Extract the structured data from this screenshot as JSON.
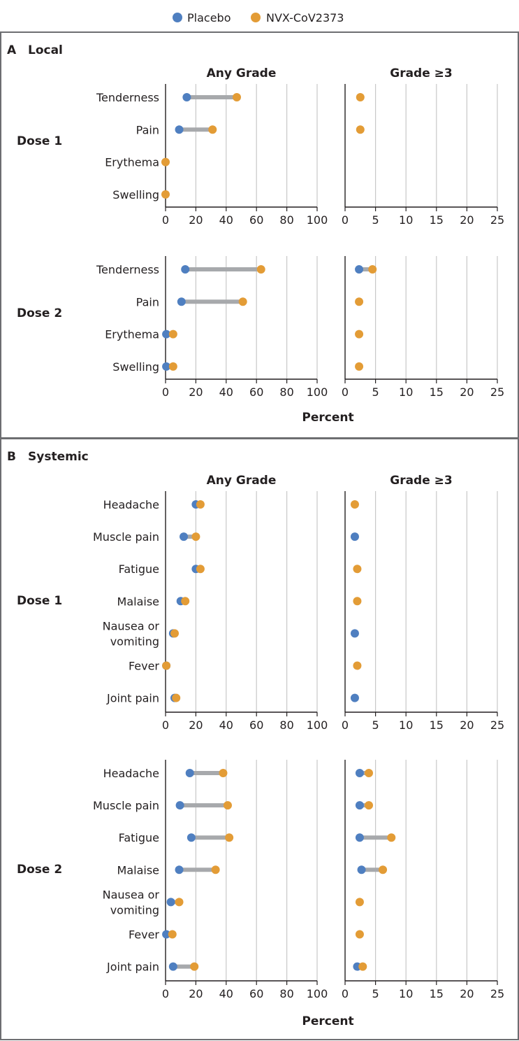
{
  "legend": {
    "placebo_label": "Placebo",
    "vaccine_label": "NVX-CoV2373"
  },
  "colors": {
    "placebo": "#4f7fc0",
    "vaccine": "#e39c36",
    "connector": "#a7a9ac",
    "gridline": "#c8c8c8",
    "panel_border": "#6d6e71",
    "axis": "#231f20"
  },
  "panels": [
    {
      "letter": "A",
      "title": "Local"
    },
    {
      "letter": "B",
      "title": "Systemic"
    }
  ],
  "column_titles": {
    "any_grade": "Any Grade",
    "grade3": "Grade ≥3"
  },
  "axis_label": "Percent",
  "chart_data": [
    {
      "type": "dumbbell",
      "panel": "A",
      "group": "Dose 1",
      "categories": [
        "Tenderness",
        "Pain",
        "Erythema",
        "Swelling"
      ],
      "any_grade": {
        "xlim": [
          0,
          100
        ],
        "ticks": [
          0,
          20,
          40,
          60,
          80,
          100
        ],
        "placebo": [
          14,
          9,
          null,
          null
        ],
        "vaccine": [
          47,
          31,
          0,
          0
        ]
      },
      "grade3": {
        "xlim": [
          0,
          25
        ],
        "ticks": [
          0,
          5,
          10,
          15,
          20,
          25
        ],
        "placebo": [
          null,
          null,
          null,
          null
        ],
        "vaccine": [
          2.5,
          2.5,
          null,
          null
        ]
      }
    },
    {
      "type": "dumbbell",
      "panel": "A",
      "group": "Dose 2",
      "categories": [
        "Tenderness",
        "Pain",
        "Erythema",
        "Swelling"
      ],
      "any_grade": {
        "xlim": [
          0,
          100
        ],
        "ticks": [
          0,
          20,
          40,
          60,
          80,
          100
        ],
        "placebo": [
          13,
          10.5,
          0.5,
          0.5
        ],
        "vaccine": [
          63,
          51,
          5,
          5
        ]
      },
      "grade3": {
        "xlim": [
          0,
          25
        ],
        "ticks": [
          0,
          5,
          10,
          15,
          20,
          25
        ],
        "placebo": [
          2.3,
          null,
          null,
          null
        ],
        "vaccine": [
          4.5,
          2.3,
          2.3,
          2.3
        ]
      }
    },
    {
      "type": "dumbbell",
      "panel": "B",
      "group": "Dose 1",
      "categories": [
        "Headache",
        "Muscle pain",
        "Fatigue",
        "Malaise",
        "Nausea or\nvomiting",
        "Fever",
        "Joint pain"
      ],
      "any_grade": {
        "xlim": [
          0,
          100
        ],
        "ticks": [
          0,
          20,
          40,
          60,
          80,
          100
        ],
        "placebo": [
          20,
          12,
          20,
          10,
          5,
          0.5,
          6
        ],
        "vaccine": [
          23,
          20,
          23,
          13,
          6,
          0.5,
          7
        ]
      },
      "grade3": {
        "xlim": [
          0,
          25
        ],
        "ticks": [
          0,
          5,
          10,
          15,
          20,
          25
        ],
        "placebo": [
          null,
          1.6,
          null,
          null,
          1.6,
          null,
          1.6
        ],
        "vaccine": [
          1.6,
          null,
          2.0,
          2.0,
          null,
          2.0,
          null
        ]
      }
    },
    {
      "type": "dumbbell",
      "panel": "B",
      "group": "Dose 2",
      "categories": [
        "Headache",
        "Muscle pain",
        "Fatigue",
        "Malaise",
        "Nausea or\nvomiting",
        "Fever",
        "Joint pain"
      ],
      "any_grade": {
        "xlim": [
          0,
          100
        ],
        "ticks": [
          0,
          20,
          40,
          60,
          80,
          100
        ],
        "placebo": [
          16,
          9.5,
          17,
          9,
          3.5,
          0.5,
          5
        ],
        "vaccine": [
          38,
          41,
          42,
          33,
          9,
          4.5,
          19
        ]
      },
      "grade3": {
        "xlim": [
          0,
          25
        ],
        "ticks": [
          0,
          5,
          10,
          15,
          20,
          25
        ],
        "placebo": [
          2.4,
          2.4,
          2.4,
          2.7,
          null,
          null,
          2.0
        ],
        "vaccine": [
          3.9,
          3.9,
          7.6,
          6.2,
          2.4,
          2.4,
          2.9
        ]
      }
    }
  ]
}
